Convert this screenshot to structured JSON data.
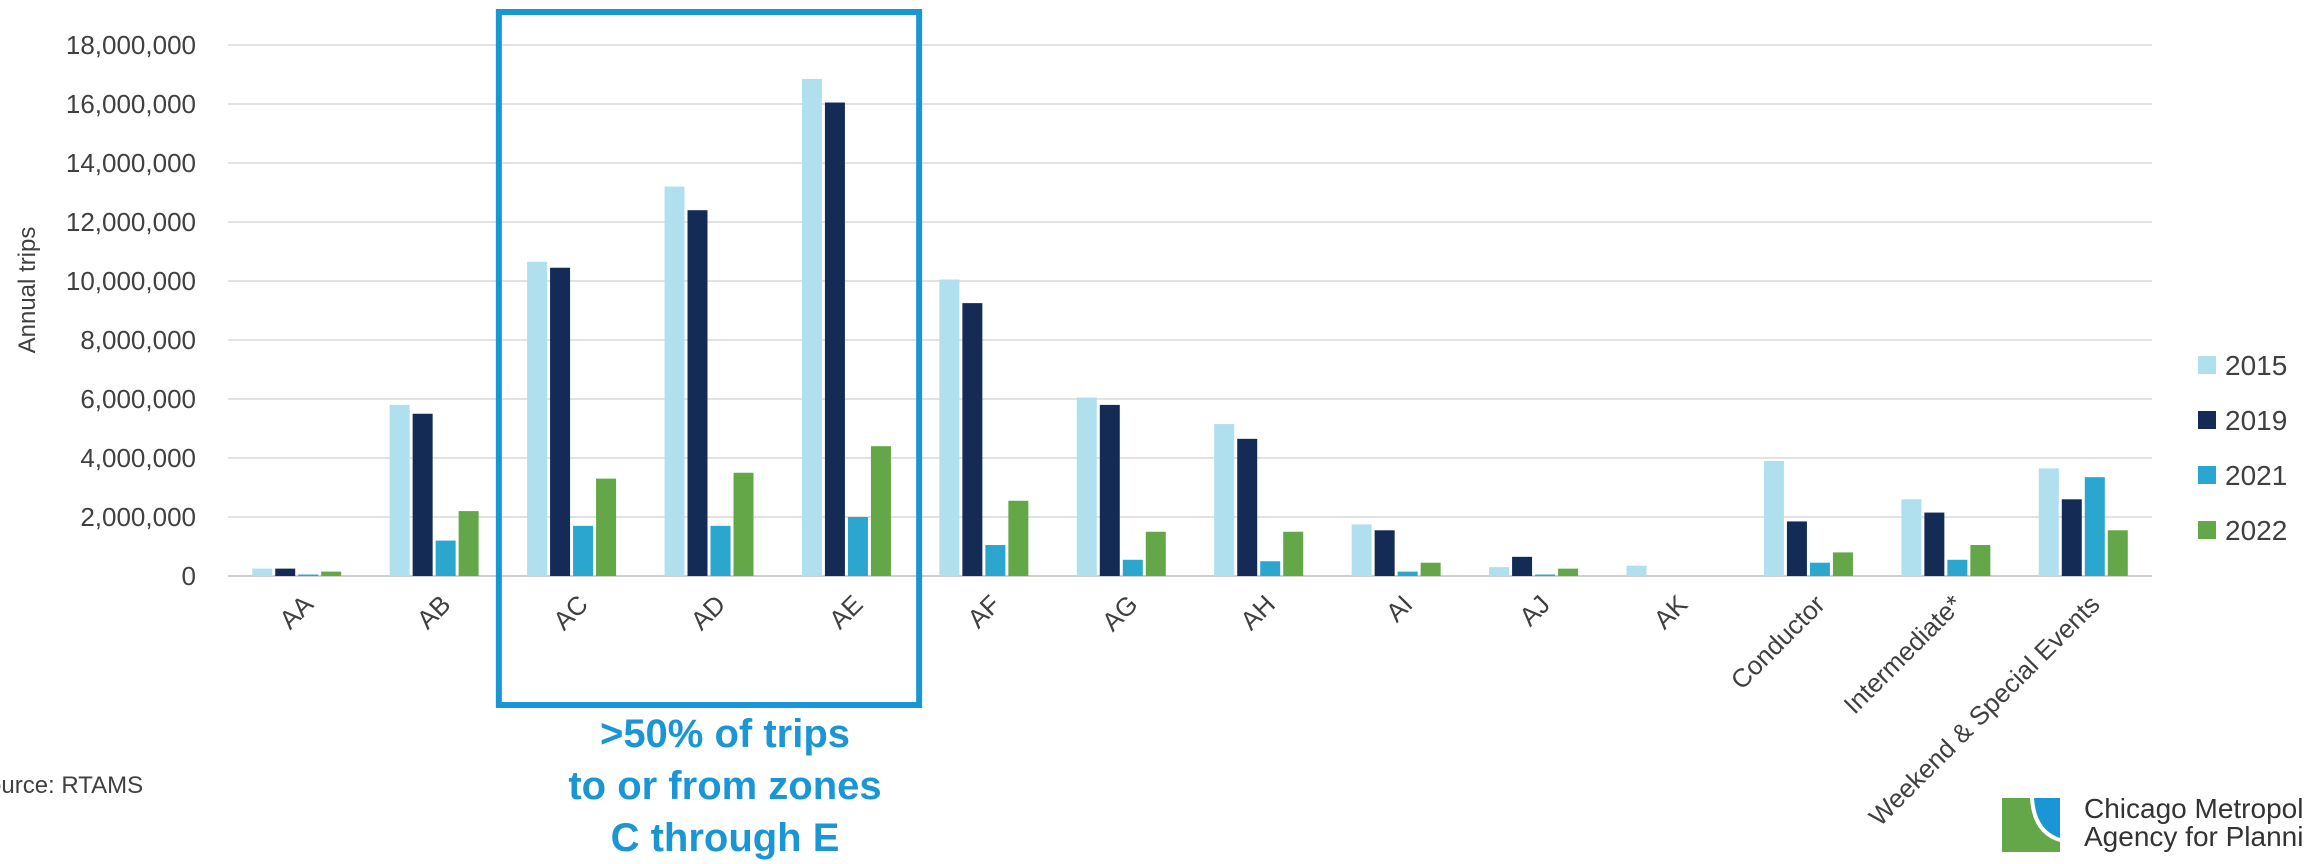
{
  "chart_data": {
    "type": "bar",
    "ylabel": "Annual trips",
    "ylim": [
      0,
      18000000
    ],
    "yticks": [
      0,
      2000000,
      4000000,
      6000000,
      8000000,
      10000000,
      12000000,
      14000000,
      16000000,
      18000000
    ],
    "ytick_labels": [
      "0",
      "2,000,000",
      "4,000,000",
      "6,000,000",
      "8,000,000",
      "10,000,000",
      "12,000,000",
      "14,000,000",
      "16,000,000",
      "18,000,000"
    ],
    "categories": [
      "AA",
      "AB",
      "AC",
      "AD",
      "AE",
      "AF",
      "AG",
      "AH",
      "AI",
      "AJ",
      "AK",
      "Conductor",
      "Intermediate*",
      "Weekend & Special Events"
    ],
    "series": [
      {
        "name": "2015",
        "color": "#b0e0ee",
        "values": [
          250000,
          5800000,
          10650000,
          13200000,
          16850000,
          10050000,
          6050000,
          5150000,
          1750000,
          300000,
          350000,
          3900000,
          2600000,
          3650000
        ]
      },
      {
        "name": "2019",
        "color": "#142c55",
        "values": [
          250000,
          5500000,
          10450000,
          12400000,
          16050000,
          9250000,
          5800000,
          4650000,
          1550000,
          650000,
          0,
          1850000,
          2150000,
          2600000
        ]
      },
      {
        "name": "2021",
        "color": "#2aa6cf",
        "values": [
          50000,
          1200000,
          1700000,
          1700000,
          2000000,
          1050000,
          550000,
          500000,
          150000,
          50000,
          0,
          450000,
          550000,
          3350000
        ]
      },
      {
        "name": "2022",
        "color": "#63a748",
        "values": [
          150000,
          2200000,
          3300000,
          3500000,
          4400000,
          2550000,
          1500000,
          1500000,
          450000,
          250000,
          0,
          800000,
          1050000,
          1550000
        ]
      }
    ],
    "legend_position": "right",
    "grid": true,
    "highlight": {
      "categories": [
        "AC",
        "AD",
        "AE"
      ],
      "color": "#1a96d4"
    }
  },
  "annotation": {
    "lines": [
      ">50% of trips",
      "to or from zones",
      "C through E"
    ]
  },
  "source": "ource: RTAMS",
  "logo": {
    "line1": "Chicago Metropol",
    "line2": "Agency for Planni",
    "color_green": "#63a748",
    "color_blue": "#1a96d4"
  }
}
